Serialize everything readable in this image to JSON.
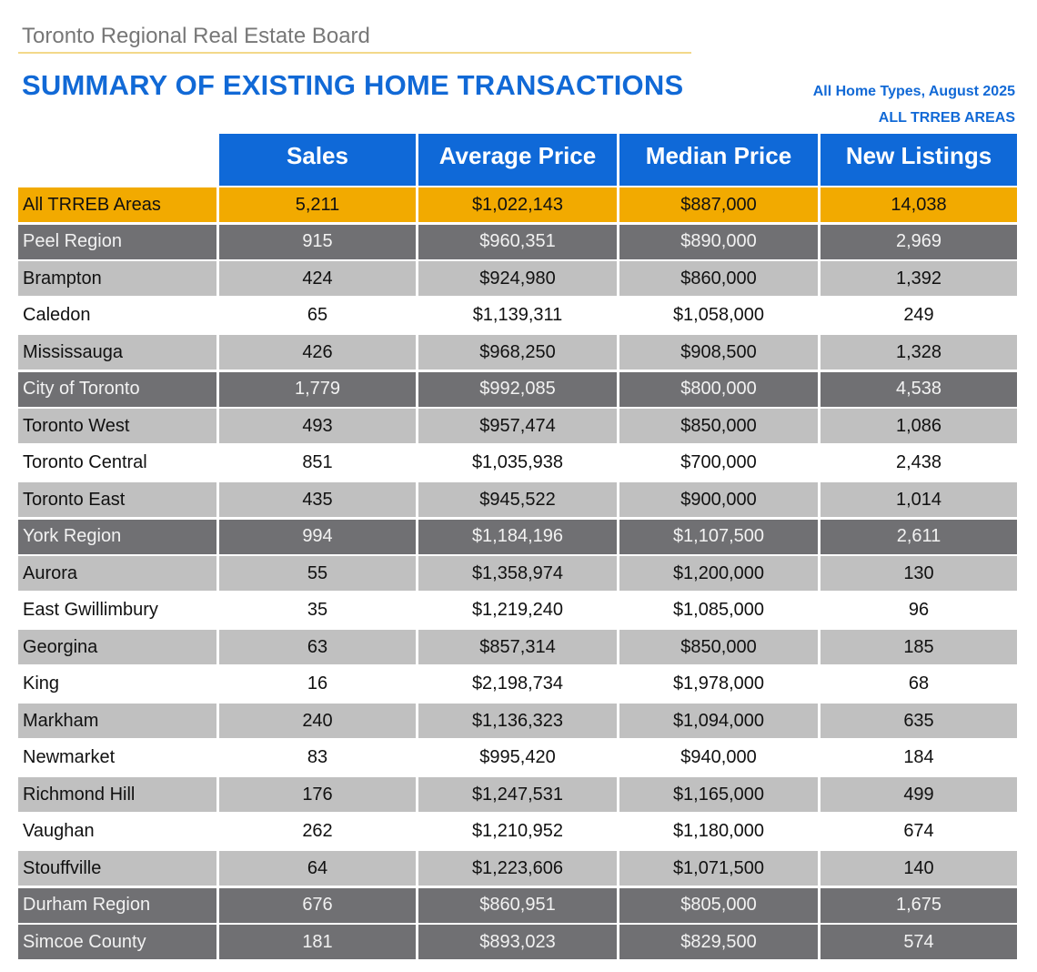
{
  "header": {
    "org": "Toronto Regional Real Estate Board",
    "title": "SUMMARY OF EXISTING HOME TRANSACTIONS",
    "subtitle_line1": "All Home Types, August 2025",
    "subtitle_line2": "ALL TRREB AREAS"
  },
  "table": {
    "columns": [
      "Sales",
      "Average Price",
      "Median Price",
      "New Listings"
    ],
    "rows": [
      {
        "style": "total",
        "area": "All TRREB Areas",
        "sales": "5,211",
        "avg": "$1,022,143",
        "median": "$887,000",
        "listings": "14,038"
      },
      {
        "style": "region",
        "area": "Peel Region",
        "sales": "915",
        "avg": "$960,351",
        "median": "$890,000",
        "listings": "2,969"
      },
      {
        "style": "light",
        "area": "Brampton",
        "sales": "424",
        "avg": "$924,980",
        "median": "$860,000",
        "listings": "1,392"
      },
      {
        "style": "white",
        "area": "Caledon",
        "sales": "65",
        "avg": "$1,139,311",
        "median": "$1,058,000",
        "listings": "249"
      },
      {
        "style": "light",
        "area": "Mississauga",
        "sales": "426",
        "avg": "$968,250",
        "median": "$908,500",
        "listings": "1,328"
      },
      {
        "style": "region",
        "area": "City of Toronto",
        "sales": "1,779",
        "avg": "$992,085",
        "median": "$800,000",
        "listings": "4,538"
      },
      {
        "style": "light",
        "area": "Toronto West",
        "sales": "493",
        "avg": "$957,474",
        "median": "$850,000",
        "listings": "1,086"
      },
      {
        "style": "white",
        "area": "Toronto Central",
        "sales": "851",
        "avg": "$1,035,938",
        "median": "$700,000",
        "listings": "2,438"
      },
      {
        "style": "light",
        "area": "Toronto East",
        "sales": "435",
        "avg": "$945,522",
        "median": "$900,000",
        "listings": "1,014"
      },
      {
        "style": "region",
        "area": "York Region",
        "sales": "994",
        "avg": "$1,184,196",
        "median": "$1,107,500",
        "listings": "2,611"
      },
      {
        "style": "light",
        "area": "Aurora",
        "sales": "55",
        "avg": "$1,358,974",
        "median": "$1,200,000",
        "listings": "130"
      },
      {
        "style": "white",
        "area": "East Gwillimbury",
        "sales": "35",
        "avg": "$1,219,240",
        "median": "$1,085,000",
        "listings": "96"
      },
      {
        "style": "light",
        "area": "Georgina",
        "sales": "63",
        "avg": "$857,314",
        "median": "$850,000",
        "listings": "185"
      },
      {
        "style": "white",
        "area": "King",
        "sales": "16",
        "avg": "$2,198,734",
        "median": "$1,978,000",
        "listings": "68"
      },
      {
        "style": "light",
        "area": "Markham",
        "sales": "240",
        "avg": "$1,136,323",
        "median": "$1,094,000",
        "listings": "635"
      },
      {
        "style": "white",
        "area": "Newmarket",
        "sales": "83",
        "avg": "$995,420",
        "median": "$940,000",
        "listings": "184"
      },
      {
        "style": "light",
        "area": "Richmond Hill",
        "sales": "176",
        "avg": "$1,247,531",
        "median": "$1,165,000",
        "listings": "499"
      },
      {
        "style": "white",
        "area": "Vaughan",
        "sales": "262",
        "avg": "$1,210,952",
        "median": "$1,180,000",
        "listings": "674"
      },
      {
        "style": "light",
        "area": "Stouffville",
        "sales": "64",
        "avg": "$1,223,606",
        "median": "$1,071,500",
        "listings": "140"
      },
      {
        "style": "region",
        "area": "Durham Region",
        "sales": "676",
        "avg": "$860,951",
        "median": "$805,000",
        "listings": "1,675"
      },
      {
        "style": "region",
        "area": "Simcoe County",
        "sales": "181",
        "avg": "$893,023",
        "median": "$829,500",
        "listings": "574"
      }
    ]
  },
  "colors": {
    "header_blue": "#0f69d8",
    "total_orange": "#f2aa00",
    "region_dark_gray": "#707073",
    "sub_light_gray": "#c0c0c0"
  }
}
